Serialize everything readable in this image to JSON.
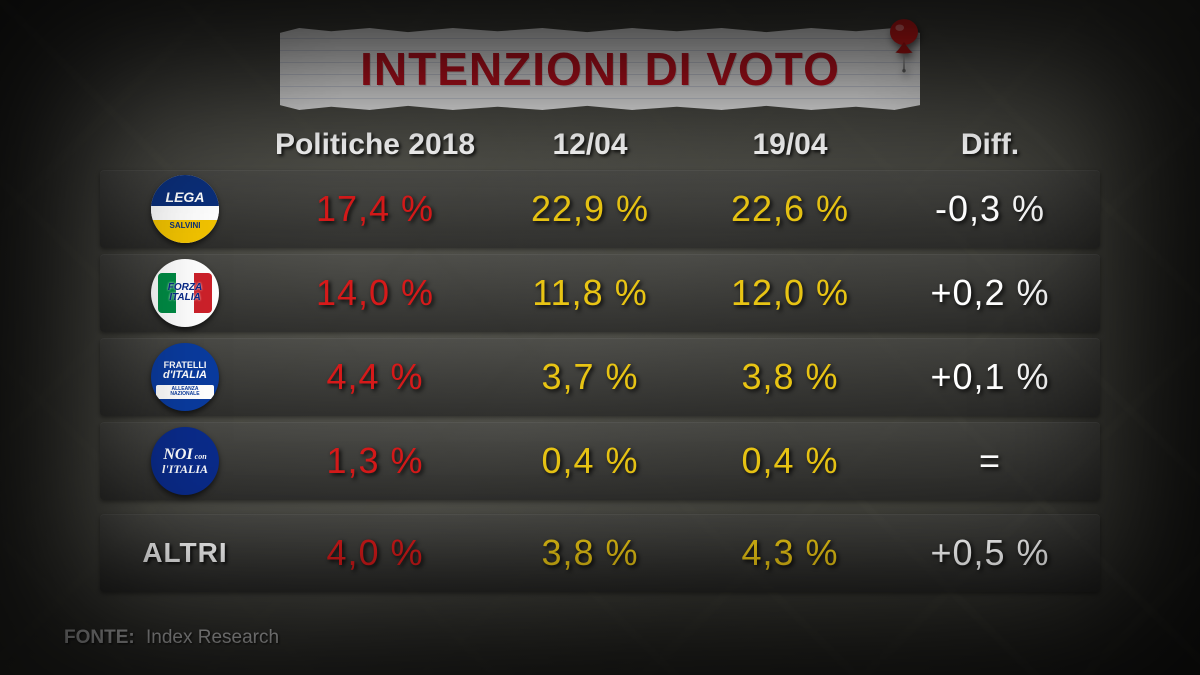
{
  "title": "INTENZIONI DI VOTO",
  "columns": {
    "party": "",
    "c1": "Politiche 2018",
    "c2": "12/04",
    "c3": "19/04",
    "c4": "Diff."
  },
  "value_colors": {
    "c1": "#d61a1a",
    "c2": "#e8c414",
    "c3": "#e8c414",
    "c4": "#ffffff"
  },
  "value_fontsize": 36,
  "header_fontsize": 30,
  "rows": [
    {
      "party_id": "lega",
      "party_name": "LEGA",
      "logo": {
        "bg": "#ffffff",
        "top_bg": "#0b2f7a",
        "top_text": "LEGA",
        "top_color": "#ffffff",
        "bottom_bg": "#f2c300",
        "bottom_text": "SALVINI",
        "bottom_color": "#0b2f7a"
      },
      "c1": "17,4 %",
      "c2": "22,9 %",
      "c3": "22,6 %",
      "c4": "-0,3 %"
    },
    {
      "party_id": "forza-italia",
      "party_name": "FORZA ITALIA",
      "logo": {
        "bg": "#ffffff",
        "stripes": [
          "#008c45",
          "#ffffff",
          "#cd212a"
        ],
        "text1": "FORZA",
        "text2": "ITALIA",
        "text_color": "#0a2b8a"
      },
      "c1": "14,0 %",
      "c2": "11,8 %",
      "c3": "12,0 %",
      "c4": "+0,2 %"
    },
    {
      "party_id": "fratelli-italia",
      "party_name": "FRATELLI d'ITALIA",
      "logo": {
        "bg": "#0a3b9e",
        "top_text": "FRATELLI",
        "mid_text": "d'ITALIA",
        "text_color": "#ffffff",
        "band_bg": "#ffffff",
        "band_text": "ALLEANZA NAZIONALE",
        "band_color": "#0a3b9e"
      },
      "c1": "4,4 %",
      "c2": "3,7 %",
      "c3": "3,8 %",
      "c4": "+0,1 %"
    },
    {
      "party_id": "noi-con-italia",
      "party_name": "NOI con l'ITALIA",
      "logo": {
        "bg": "#0a2b8a",
        "top_text": "NOI",
        "mid_text": "con",
        "bot_text": "l'ITALIA",
        "text_color": "#ffffff",
        "script": true
      },
      "c1": "1,3 %",
      "c2": "0,4 %",
      "c3": "0,4 %",
      "c4": "="
    },
    {
      "party_id": "altri",
      "party_name": "ALTRI",
      "is_label_only": true,
      "label": "ALTRI",
      "c1": "4,0 %",
      "c2": "3,8 %",
      "c3": "4,3 %",
      "c4": "+0,5 %",
      "separated": true
    }
  ],
  "source": {
    "label": "FONTE:",
    "value": "Index Research"
  },
  "pin_color": "#d61a1a"
}
